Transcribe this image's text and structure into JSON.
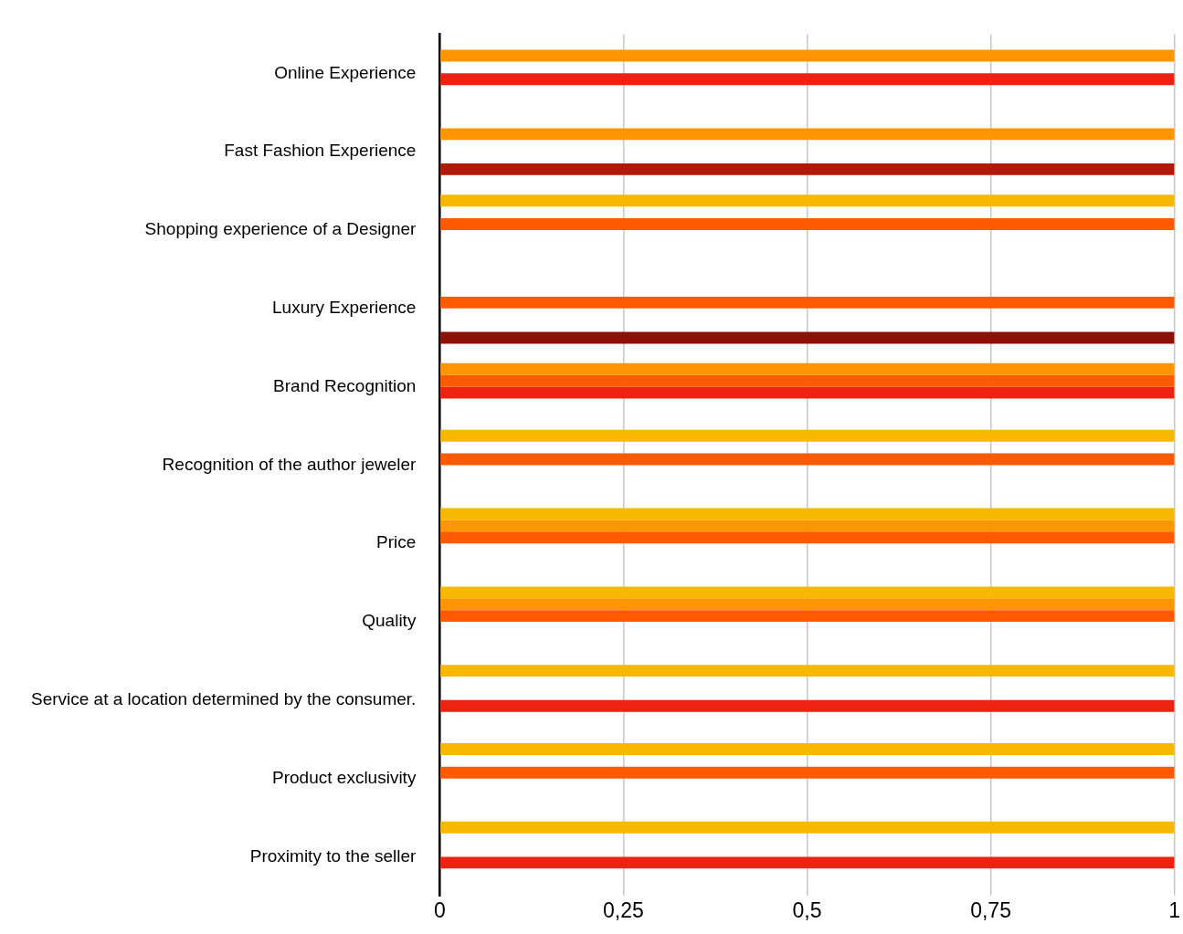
{
  "chart_data": {
    "type": "bar",
    "orientation": "horizontal",
    "categories": [
      "Online Experience",
      "Fast Fashion Experience",
      "Shopping experience of a Designer",
      "Luxury Experience",
      "Brand Recognition",
      "Recognition of the author jeweler",
      "Price",
      "Quality",
      "Service at a location determined by the consumer.",
      "Product exclusivity",
      "Proximity to the seller"
    ],
    "series": [
      {
        "color": "#f7b900",
        "values": [
          null,
          null,
          1,
          null,
          null,
          1,
          1,
          1,
          1,
          1,
          1
        ]
      },
      {
        "color": "#ff9500",
        "values": [
          1,
          1,
          null,
          null,
          1,
          null,
          1,
          1,
          null,
          null,
          null
        ]
      },
      {
        "color": "#ff5a00",
        "values": [
          null,
          null,
          1,
          1,
          1,
          1,
          1,
          1,
          null,
          1,
          null
        ]
      },
      {
        "color": "#ee2211",
        "values": [
          1,
          null,
          null,
          null,
          1,
          null,
          null,
          null,
          1,
          null,
          1
        ]
      },
      {
        "color": "#b01a0a",
        "values": [
          null,
          1,
          null,
          null,
          null,
          null,
          null,
          null,
          null,
          null,
          null
        ]
      },
      {
        "color": "#8b1005",
        "values": [
          null,
          null,
          null,
          1,
          null,
          null,
          null,
          null,
          null,
          null,
          null
        ]
      }
    ],
    "xlim": [
      0,
      1
    ],
    "xticks": [
      0,
      {
        "value": 0.25,
        "label": "0,25"
      },
      {
        "value": 0.5,
        "label": "0,5"
      },
      {
        "value": 0.75,
        "label": "0,75"
      },
      1
    ],
    "grid": "x"
  }
}
